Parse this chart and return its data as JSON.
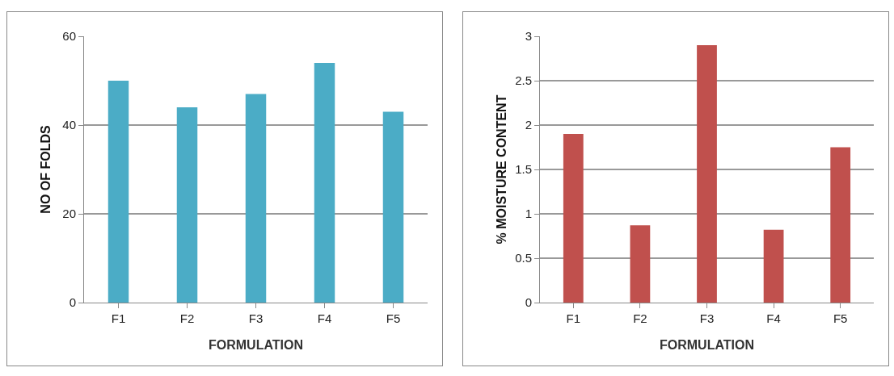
{
  "chart_data": [
    {
      "type": "bar",
      "categories": [
        "F1",
        "F2",
        "F3",
        "F4",
        "F5"
      ],
      "values": [
        50,
        44,
        47,
        54,
        43
      ],
      "color": "#4bacc6",
      "xlabel": "FORMULATION",
      "ylabel": "NO OF FOLDS",
      "ylim": [
        0,
        60
      ],
      "yticks": [
        0,
        20,
        40,
        60
      ],
      "grid": "y"
    },
    {
      "type": "bar",
      "categories": [
        "F1",
        "F2",
        "F3",
        "F4",
        "F5"
      ],
      "values": [
        1.9,
        0.87,
        2.9,
        0.82,
        1.75
      ],
      "color": "#c0504d",
      "xlabel": "FORMULATION",
      "ylabel": "% MOISTURE CONTENT",
      "ylim": [
        0,
        3
      ],
      "yticks": [
        0,
        0.5,
        1,
        1.5,
        2,
        2.5,
        3
      ],
      "grid": "y"
    }
  ]
}
